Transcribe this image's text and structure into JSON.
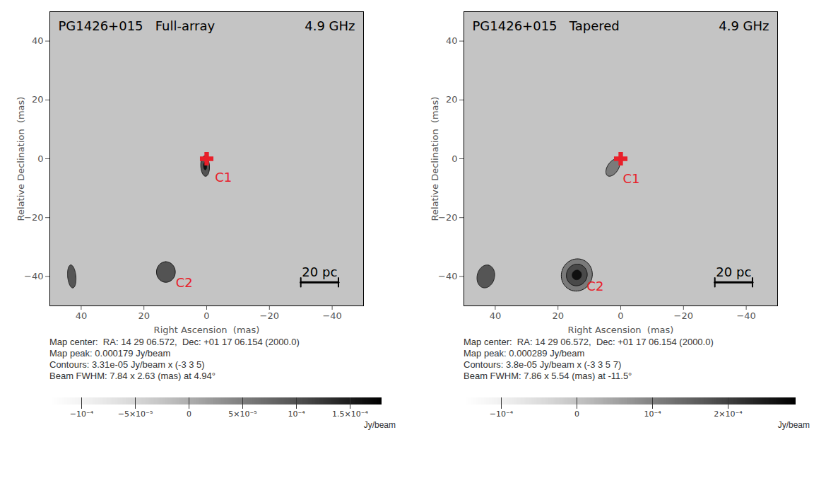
{
  "chart_data": [
    {
      "type": "image",
      "title": "PG1426+015   Full-array",
      "frequency": "4.9 GHz",
      "x_label": "Right Ascension  (mas)",
      "y_label": "Relative Declination  (mas)",
      "xlim": [
        50,
        -50
      ],
      "ylim": [
        -50,
        50
      ],
      "xticks": [
        40,
        20,
        0,
        -20,
        -40
      ],
      "yticks": [
        -40,
        -20,
        0,
        20,
        40
      ],
      "reference": {
        "x": 0,
        "y": 0,
        "marker": "cross",
        "color": "#e8202a"
      },
      "components": [
        {
          "name": "C1",
          "x": 0.5,
          "y": -2.5,
          "peak": 0.000179,
          "major": 7.5,
          "minor": 3,
          "pa": 3,
          "color": "#e8202a"
        },
        {
          "name": "C2",
          "x": 13,
          "y": -38.5,
          "peak": 0.000135,
          "major": 10.5,
          "minor": 9,
          "pa": 0,
          "color": "#e8202a"
        }
      ],
      "contours": {
        "base": 3.31e-05,
        "levels": [
          -3,
          3,
          5
        ]
      },
      "beam": {
        "major": 7.84,
        "minor": 2.63,
        "pa": 4.94
      },
      "scale_bar": {
        "label": "20 pc",
        "length": 12
      },
      "caption": [
        "Map center:  RA: 14 29 06.572,  Dec: +01 17 06.154 (2000.0)",
        "Map peak: 0.000179 Jy/beam",
        "Contours: 3.31e-05 Jy/beam x (-3 3 5)",
        "Beam FWHM: 7.84 x 2.63 (mas) at 4.94°"
      ],
      "colorbar": {
        "range": [
          -0.00013,
          0.00018
        ],
        "label": "Jy/beam",
        "ticks": [
          {
            "value": -0.0001,
            "label": "−10⁻⁴"
          },
          {
            "value": -5e-05,
            "label": "−5×10⁻⁵"
          },
          0,
          {
            "value": 5e-05,
            "label": "5×10⁻⁵"
          },
          {
            "value": 0.0001,
            "label": "10⁻⁴"
          },
          {
            "value": 0.00015,
            "label": "1.5×10⁻⁴"
          }
        ]
      }
    },
    {
      "type": "image",
      "title": "PG1426+015   Tapered",
      "frequency": "4.9 GHz",
      "x_label": "Right Ascension  (mas)",
      "y_label": "Relative Declination  (mas)",
      "xlim": [
        50,
        -50
      ],
      "ylim": [
        -50,
        50
      ],
      "xticks": [
        40,
        20,
        0,
        -20,
        -40
      ],
      "yticks": [
        -40,
        -20,
        0,
        20,
        40
      ],
      "reference": {
        "x": 0,
        "y": 0,
        "marker": "cross",
        "color": "#e8202a"
      },
      "components": [
        {
          "name": "C1",
          "x": 2.5,
          "y": -3,
          "peak": 0.000145,
          "major": 11,
          "minor": 6,
          "pa": -30,
          "color": "#e8202a"
        },
        {
          "name": "C2",
          "x": 14,
          "y": -39.5,
          "peak": 0.000289,
          "major": 9.5,
          "minor": 8.5,
          "pa": -11.5,
          "color": "#e8202a"
        }
      ],
      "contours": {
        "base": 3.8e-05,
        "levels": [
          -3,
          3,
          5,
          7
        ]
      },
      "beam": {
        "major": 7.86,
        "minor": 5.54,
        "pa": -11.5
      },
      "scale_bar": {
        "label": "20 pc",
        "length": 12
      },
      "caption": [
        "Map center:  RA: 14 29 06.572,  Dec: +01 17 06.154 (2000.0)",
        "Map peak: 0.000289 Jy/beam",
        "Contours: 3.8e-05 Jy/beam x (-3 3 5 7)",
        "Beam FWHM: 7.86 x 5.54 (mas) at -11.5°"
      ],
      "colorbar": {
        "range": [
          -0.00015,
          0.00029
        ],
        "label": "Jy/beam",
        "ticks": [
          {
            "value": -0.0001,
            "label": "−10⁻⁴"
          },
          0,
          {
            "value": 0.0001,
            "label": "10⁻⁴"
          },
          {
            "value": 0.0002,
            "label": "2×10⁻⁴"
          }
        ]
      }
    }
  ]
}
